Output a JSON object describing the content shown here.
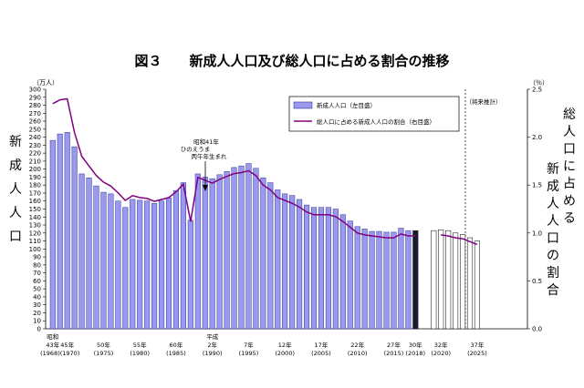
{
  "chart_data": {
    "type": "bar",
    "title": "図３　　新成人人口及び総人口に占める割合の推移",
    "ylabel_left": "新成人人口",
    "ylabel_right_col1": "総人口に占める",
    "ylabel_right_col2": "新成人人口の割合",
    "unit_left": "（万人）",
    "unit_right": "（％）",
    "ylim_left": [
      0,
      300
    ],
    "ylim_right": [
      0,
      2.5
    ],
    "yticks_left": [
      "0",
      "10",
      "20",
      "30",
      "40",
      "50",
      "60",
      "70",
      "80",
      "90",
      "100",
      "110",
      "120",
      "130",
      "140",
      "150",
      "160",
      "170",
      "180",
      "190",
      "200",
      "210",
      "220",
      "230",
      "240",
      "250",
      "260",
      "270",
      "280",
      "290",
      "300"
    ],
    "yticks_right": [
      "0.0",
      "0.5",
      "1.0",
      "1.5",
      "2.0",
      "2.5"
    ],
    "era_showa": "昭和",
    "era_heisei": "平成",
    "x_labels_top": [
      "43年",
      "45年",
      "50年",
      "55年",
      "60年",
      "2年",
      "7年",
      "12年",
      "17年",
      "22年",
      "27年",
      "30年",
      "32年",
      "37年"
    ],
    "x_labels_bottom": [
      "(1968)(1970)",
      "(1975)",
      "(1980)",
      "(1985)",
      "(1990)",
      "(1995)",
      "(2000)",
      "(2005)",
      "(2010)",
      "(2015)",
      "(2018)",
      "(2020)",
      "(2025)"
    ],
    "years": [
      1968,
      1969,
      1970,
      1971,
      1972,
      1973,
      1974,
      1975,
      1976,
      1977,
      1978,
      1979,
      1980,
      1981,
      1982,
      1983,
      1984,
      1985,
      1986,
      1987,
      1988,
      1989,
      1990,
      1991,
      1992,
      1993,
      1994,
      1995,
      1996,
      1997,
      1998,
      1999,
      2000,
      2001,
      2002,
      2003,
      2004,
      2005,
      2006,
      2007,
      2008,
      2009,
      2010,
      2011,
      2012,
      2013,
      2014,
      2015,
      2016,
      2017,
      2018,
      2019,
      2020,
      2021,
      2022,
      2023,
      2024,
      2025
    ],
    "series": [
      {
        "name": "新成人人口（左目盛）",
        "values": [
          236,
          244,
          246,
          228,
          194,
          189,
          179,
          171,
          169,
          160,
          152,
          162,
          161,
          160,
          157,
          160,
          164,
          173,
          183,
          136,
          194,
          190,
          188,
          193,
          197,
          202,
          204,
          207,
          201,
          189,
          183,
          174,
          169,
          167,
          162,
          155,
          152,
          152,
          152,
          150,
          143,
          135,
          128,
          125,
          122,
          122,
          121,
          121,
          126,
          123,
          123,
          123,
          124,
          123,
          120,
          118,
          114,
          110
        ]
      },
      {
        "name": "総人口に占める新成人人口の割合（右目盛）",
        "values": [
          2.35,
          2.39,
          2.4,
          2.05,
          1.8,
          1.7,
          1.6,
          1.53,
          1.49,
          1.42,
          1.34,
          1.39,
          1.37,
          1.36,
          1.33,
          1.35,
          1.37,
          1.43,
          1.51,
          1.12,
          1.58,
          1.55,
          1.52,
          1.56,
          1.59,
          1.62,
          1.63,
          1.65,
          1.6,
          1.5,
          1.45,
          1.37,
          1.34,
          1.31,
          1.27,
          1.22,
          1.19,
          1.19,
          1.19,
          1.17,
          1.12,
          1.06,
          1.0,
          0.98,
          0.97,
          0.96,
          0.95,
          0.95,
          0.99,
          0.97,
          0.97,
          0.98,
          0.98,
          0.97,
          0.95,
          0.94,
          0.91,
          0.88
        ]
      }
    ],
    "projection_label": "（将来推計）",
    "annotation": [
      "昭和41年",
      "ひのえうま",
      "丙午年生まれ"
    ],
    "colors": {
      "bar": "#9999ee",
      "bar_edge": "#333399",
      "bar_2018": "#1a1a2e",
      "line": "#800080",
      "projection_bar": "#ffffff"
    }
  }
}
